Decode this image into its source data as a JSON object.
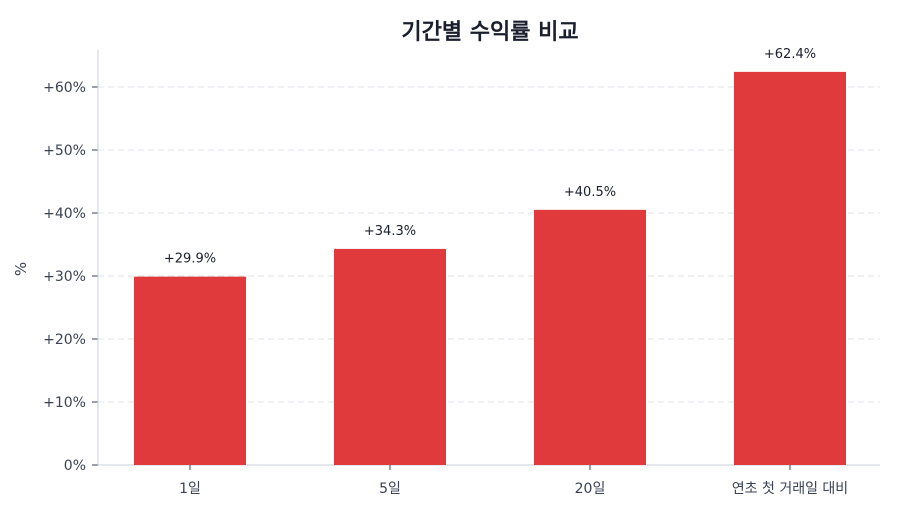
{
  "chart_data": {
    "type": "bar",
    "title": "기간별 수익률 비교",
    "xlabel": "",
    "ylabel": "%",
    "ylim": [
      0,
      65
    ],
    "yticks": [
      "0%",
      "+10%",
      "+20%",
      "+30%",
      "+40%",
      "+50%",
      "+60%"
    ],
    "categories": [
      "1일",
      "5일",
      "20일",
      "연초 첫 거래일 대비"
    ],
    "values": [
      29.9,
      34.3,
      40.5,
      62.4
    ],
    "value_labels": [
      "+29.9%",
      "+34.3%",
      "+40.5%",
      "+62.4%"
    ],
    "grid": "horizontal dashed",
    "legend": null,
    "bar_color": "#e03a3c"
  }
}
